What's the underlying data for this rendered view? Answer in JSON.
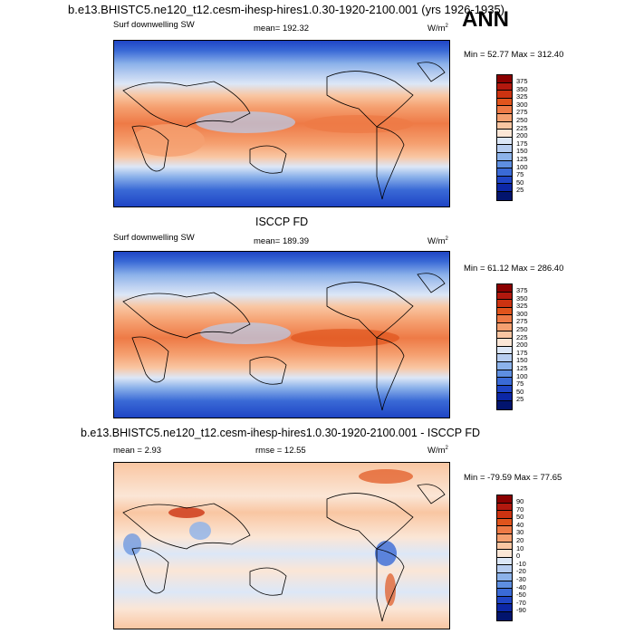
{
  "header": {
    "run_title": "b.e13.BHISTC5.ne120_t12.cesm-ihesp-hires1.0.30-1920-2100.001 (yrs 1926-1935)",
    "season": "ANN"
  },
  "panels": [
    {
      "id": "model",
      "panel_title": "",
      "variable": "Surf downwelling SW",
      "stat": "mean= 192.32",
      "units": "W/m",
      "units_sup": "2",
      "minmax": "Min =  52.77 Max = 312.40",
      "colorbar_labels": [
        "375",
        "350",
        "325",
        "300",
        "275",
        "250",
        "225",
        "200",
        "175",
        "150",
        "125",
        "100",
        "75",
        "50",
        "25"
      ]
    },
    {
      "id": "obs",
      "panel_title": "ISCCP FD",
      "variable": "Surf downwelling SW",
      "stat": "mean= 189.39",
      "units": "W/m",
      "units_sup": "2",
      "minmax": "Min =  61.12 Max = 286.40",
      "colorbar_labels": [
        "375",
        "350",
        "325",
        "300",
        "275",
        "250",
        "225",
        "200",
        "175",
        "150",
        "125",
        "100",
        "75",
        "50",
        "25"
      ]
    },
    {
      "id": "diff",
      "panel_title": "b.e13.BHISTC5.ne120_t12.cesm-ihesp-hires1.0.30-1920-2100.001 - ISCCP FD",
      "variable": "mean =   2.93",
      "stat": "rmse =  12.55",
      "units": "W/m",
      "units_sup": "2",
      "minmax": "Min = -79.59 Max =  77.65",
      "colorbar_labels": [
        "90",
        "70",
        "50",
        "40",
        "30",
        "20",
        "10",
        "0",
        "-10",
        "-20",
        "-30",
        "-40",
        "-50",
        "-70",
        "-90"
      ]
    }
  ],
  "colors": {
    "abs_scale": [
      "#8b0000",
      "#b2180e",
      "#cc3311",
      "#e0541c",
      "#ee7a46",
      "#f5a070",
      "#f9c6a2",
      "#fbe6d6",
      "#dce7f7",
      "#b7cdf0",
      "#8cb2ea",
      "#5e8ee0",
      "#3a6ad6",
      "#1f45c5",
      "#0c27a6",
      "#02146e"
    ],
    "diff_scale": [
      "#8b0000",
      "#b2180e",
      "#cc3311",
      "#e0541c",
      "#ee7a46",
      "#f5a070",
      "#f9c6a2",
      "#fbe6d6",
      "#dce7f7",
      "#b7cdf0",
      "#8cb2ea",
      "#5e8ee0",
      "#3a6ad6",
      "#1f45c5",
      "#0c27a6",
      "#02146e"
    ]
  }
}
